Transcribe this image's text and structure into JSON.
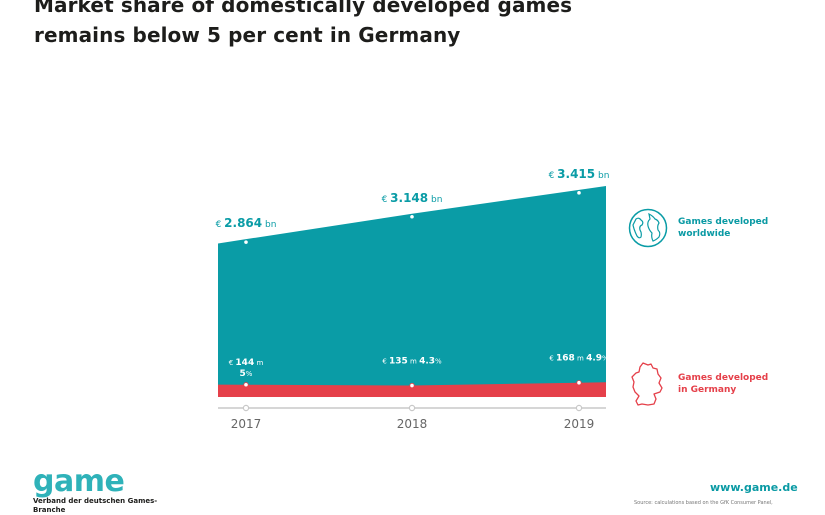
{
  "title": "Market share of domestically developed games remains below 5 per cent in Germany",
  "legend": {
    "world": "Games developed worldwide",
    "germany": "Games developed in Germany"
  },
  "colors": {
    "world": "#0a9ca6",
    "germany": "#e5404a",
    "axis": "#c8c8c8"
  },
  "icons": {
    "world": "globe-icon",
    "germany": "germany-map-icon"
  },
  "chart_data": {
    "type": "area",
    "x": [
      "2017",
      "2018",
      "2019"
    ],
    "series": [
      {
        "name": "Games developed worldwide",
        "values": [
          2.864,
          3.148,
          3.415
        ],
        "unit": "bn",
        "labels": [
          {
            "prefix": "€",
            "value": "2.864",
            "unit": "bn"
          },
          {
            "prefix": "€",
            "value": "3.148",
            "unit": "bn"
          },
          {
            "prefix": "€",
            "value": "3.415",
            "unit": "bn"
          }
        ]
      },
      {
        "name": "Games developed in Germany",
        "values": [
          0.144,
          0.135,
          0.168
        ],
        "unit": "m",
        "labels": [
          {
            "prefix": "€",
            "value": "144",
            "unit": "m",
            "share": "5",
            "share_unit": "%"
          },
          {
            "prefix": "€",
            "value": "135",
            "unit": "m",
            "share": "4.3",
            "share_unit": "%"
          },
          {
            "prefix": "€",
            "value": "168",
            "unit": "m",
            "share": "4.9",
            "share_unit": "%"
          }
        ]
      }
    ],
    "grid": false
  },
  "footer": {
    "logo": "game",
    "logo_sub": "Verband der deutschen Games-Branche",
    "website": "www.game.de",
    "source": "Source: calculations based on the GfK Consumer Panel,"
  }
}
